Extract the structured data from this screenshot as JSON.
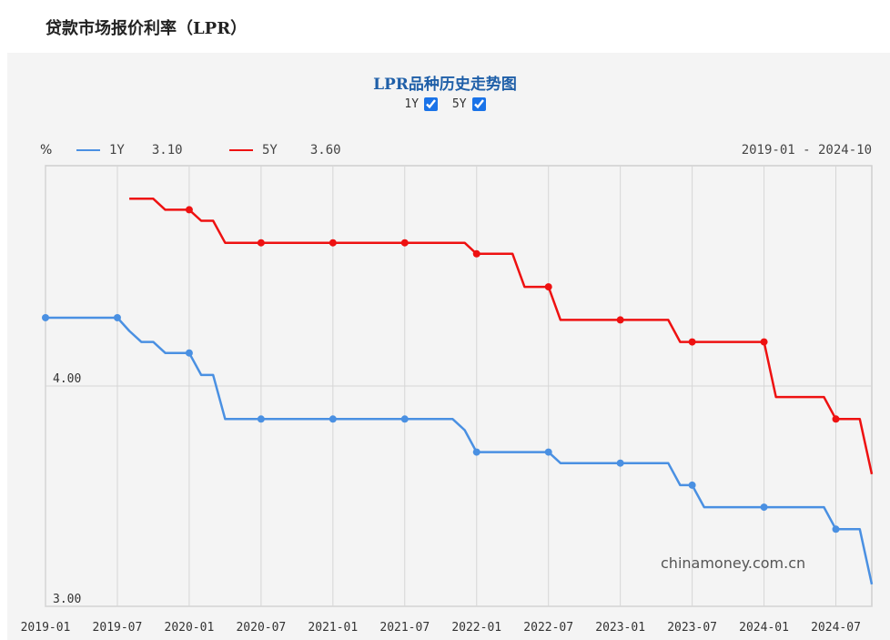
{
  "page": {
    "title": "贷款市场报价利率（LPR）"
  },
  "controls": {
    "toggles": [
      {
        "label": "1Y",
        "checked": true
      },
      {
        "label": "5Y",
        "checked": true
      }
    ]
  },
  "watermark": "chinamoney.com.cn",
  "chart_data": {
    "type": "line",
    "title": "LPR品种历史走势图",
    "yunit": "%",
    "range_label": "2019-01 - 2024-10",
    "ylim": [
      3.0,
      5.0
    ],
    "yticks": [
      {
        "value": 3.0,
        "label": "3.00"
      },
      {
        "value": 4.0,
        "label": "4.00"
      }
    ],
    "xlim": [
      "2019-01",
      "2024-10"
    ],
    "xticks": [
      "2019-01",
      "2019-07",
      "2020-01",
      "2020-07",
      "2021-01",
      "2021-07",
      "2022-01",
      "2022-07",
      "2023-01",
      "2023-07",
      "2024-01",
      "2024-07"
    ],
    "grid": true,
    "legend_position": "top-left",
    "series": [
      {
        "name": "1Y",
        "latest_label": "3.10",
        "color": "#4a90e2",
        "points": [
          [
            "2019-01",
            4.31
          ],
          [
            "2019-07",
            4.31
          ],
          [
            "2019-08",
            4.25
          ],
          [
            "2019-09",
            4.2
          ],
          [
            "2019-10",
            4.2
          ],
          [
            "2019-11",
            4.15
          ],
          [
            "2019-12",
            4.15
          ],
          [
            "2020-01",
            4.15
          ],
          [
            "2020-02",
            4.05
          ],
          [
            "2020-03",
            4.05
          ],
          [
            "2020-04",
            3.85
          ],
          [
            "2020-07",
            3.85
          ],
          [
            "2021-01",
            3.85
          ],
          [
            "2021-07",
            3.85
          ],
          [
            "2021-11",
            3.85
          ],
          [
            "2021-12",
            3.8
          ],
          [
            "2022-01",
            3.7
          ],
          [
            "2022-07",
            3.7
          ],
          [
            "2022-08",
            3.65
          ],
          [
            "2023-01",
            3.65
          ],
          [
            "2023-05",
            3.65
          ],
          [
            "2023-06",
            3.55
          ],
          [
            "2023-07",
            3.55
          ],
          [
            "2023-08",
            3.45
          ],
          [
            "2024-01",
            3.45
          ],
          [
            "2024-06",
            3.45
          ],
          [
            "2024-07",
            3.35
          ],
          [
            "2024-09",
            3.35
          ],
          [
            "2024-10",
            3.1
          ]
        ],
        "markers": [
          "2019-01",
          "2019-07",
          "2020-01",
          "2020-07",
          "2021-01",
          "2021-07",
          "2022-01",
          "2022-07",
          "2023-01",
          "2023-07",
          "2024-01",
          "2024-07"
        ]
      },
      {
        "name": "5Y",
        "latest_label": "3.60",
        "color": "#ee1111",
        "points": [
          [
            "2019-08",
            4.85
          ],
          [
            "2019-10",
            4.85
          ],
          [
            "2019-11",
            4.8
          ],
          [
            "2020-01",
            4.8
          ],
          [
            "2020-02",
            4.75
          ],
          [
            "2020-03",
            4.75
          ],
          [
            "2020-04",
            4.65
          ],
          [
            "2020-07",
            4.65
          ],
          [
            "2021-01",
            4.65
          ],
          [
            "2021-07",
            4.65
          ],
          [
            "2021-12",
            4.65
          ],
          [
            "2022-01",
            4.6
          ],
          [
            "2022-04",
            4.6
          ],
          [
            "2022-05",
            4.45
          ],
          [
            "2022-07",
            4.45
          ],
          [
            "2022-08",
            4.3
          ],
          [
            "2023-01",
            4.3
          ],
          [
            "2023-05",
            4.3
          ],
          [
            "2023-06",
            4.2
          ],
          [
            "2023-07",
            4.2
          ],
          [
            "2024-01",
            4.2
          ],
          [
            "2024-02",
            3.95
          ],
          [
            "2024-06",
            3.95
          ],
          [
            "2024-07",
            3.85
          ],
          [
            "2024-09",
            3.85
          ],
          [
            "2024-10",
            3.6
          ]
        ],
        "markers": [
          "2020-01",
          "2020-07",
          "2021-01",
          "2021-07",
          "2022-01",
          "2022-07",
          "2023-01",
          "2023-07",
          "2024-01",
          "2024-07"
        ]
      }
    ]
  }
}
